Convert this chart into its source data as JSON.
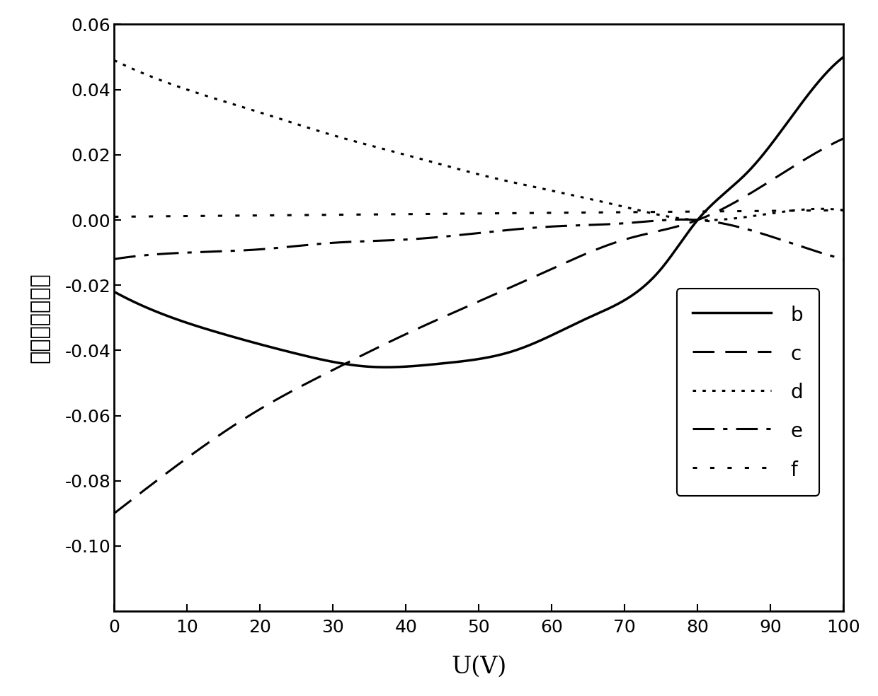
{
  "xlim": [
    0,
    100
  ],
  "ylim": [
    -0.12,
    0.06
  ],
  "xlabel": "U(V)",
  "ylabel": "其他非球面系数",
  "xticks": [
    0,
    10,
    20,
    30,
    40,
    50,
    60,
    70,
    80,
    90,
    100
  ],
  "yticks": [
    -0.1,
    -0.08,
    -0.06,
    -0.04,
    -0.02,
    0.0,
    0.02,
    0.04,
    0.06
  ],
  "background_color": "#ffffff",
  "line_color": "#000000",
  "label_fontsize": 22,
  "tick_fontsize": 18,
  "legend_fontsize": 20,
  "linewidth": 2.2,
  "curve_b_x": [
    0,
    5,
    10,
    15,
    20,
    25,
    30,
    35,
    40,
    45,
    50,
    55,
    60,
    65,
    70,
    75,
    80,
    85,
    90,
    95,
    100
  ],
  "curve_b_y": [
    -0.022,
    -0.029,
    -0.033,
    -0.037,
    -0.04,
    -0.042,
    -0.044,
    -0.045,
    -0.044,
    -0.043,
    -0.04,
    -0.034,
    -0.027,
    -0.018,
    -0.008,
    0.004,
    0.0,
    0.018,
    0.03,
    0.04,
    0.05
  ],
  "curve_c_x": [
    0,
    10,
    20,
    30,
    40,
    50,
    60,
    70,
    80,
    90,
    100
  ],
  "curve_c_y": [
    -0.09,
    -0.072,
    -0.057,
    -0.044,
    -0.034,
    -0.024,
    -0.014,
    -0.005,
    0.0,
    0.012,
    0.025
  ],
  "curve_d_x": [
    0,
    10,
    20,
    30,
    40,
    50,
    60,
    70,
    80,
    90,
    100
  ],
  "curve_d_y": [
    0.049,
    0.04,
    0.033,
    0.026,
    0.02,
    0.014,
    0.009,
    0.004,
    0.0,
    0.002,
    0.003
  ],
  "curve_e_x": [
    0,
    10,
    20,
    30,
    40,
    50,
    60,
    70,
    80,
    90,
    100
  ],
  "curve_e_y": [
    -0.012,
    -0.011,
    -0.009,
    -0.008,
    -0.006,
    -0.004,
    -0.003,
    -0.001,
    0.0,
    -0.004,
    -0.01
  ],
  "curve_f_x": [
    0,
    10,
    20,
    30,
    40,
    50,
    60,
    70,
    80,
    90,
    100
  ],
  "curve_f_y": [
    0.001,
    0.001,
    0.001,
    0.001,
    0.001,
    0.001,
    0.001,
    0.001,
    0.001,
    0.002,
    0.003
  ]
}
